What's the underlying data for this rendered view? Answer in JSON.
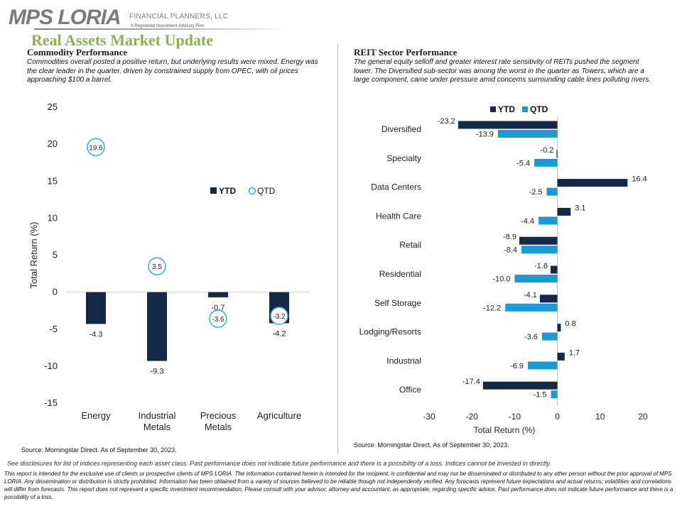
{
  "header": {
    "logo_text": "MPS LORIA",
    "logo_tagline": "FINANCIAL PLANNERS, LLC",
    "logo_subtagline": "A Registered Investment Advisory Firm",
    "title": "Real Assets Market Update"
  },
  "commodity": {
    "title": "Commodity Performance",
    "description": "Commodities overall posted a positive return, but underlying results were mixed. Energy was the clear leader in the quarter, driven by constrained supply from OPEC, with oil prices approaching $100 a barrel.",
    "source": "Source: Morningstar Direct. As of September 30, 2023."
  },
  "reit": {
    "title": "REIT Sector Performance",
    "description": "The general equity selloff and greater interest rate sensitivity of REITs pushed the segment lower. The Diversified sub-sector was among the worst in the quarter as Towers, which are a large component, came under pressure amid concerns surrounding cable lines polluting rivers.",
    "source": "Source: Morningstar Direct. As of September 30, 2023."
  },
  "chart_data": [
    {
      "type": "bar",
      "categories": [
        "Energy",
        "Industrial\nMetals",
        "Precious\nMetals",
        "Agriculture"
      ],
      "series": [
        {
          "name": "YTD",
          "values": [
            -4.3,
            -9.3,
            -0.7,
            -4.2
          ],
          "color": "#14294a",
          "marker": "bar"
        },
        {
          "name": "QTD",
          "values": [
            19.6,
            3.5,
            -3.6,
            -3.2
          ],
          "color": "#3aa9d9",
          "marker": "circle"
        }
      ],
      "ylabel": "Total Return (%)",
      "xlabel": "",
      "ylim": [
        -15,
        25
      ],
      "yticks": [
        -15,
        -10,
        -5,
        0,
        5,
        10,
        15,
        20,
        25
      ],
      "grid": false,
      "legend": "center-right"
    },
    {
      "type": "bar",
      "orientation": "horizontal",
      "categories": [
        "Diversified",
        "Specialty",
        "Data Centers",
        "Health Care",
        "Retail",
        "Residential",
        "Self Storage",
        "Lodging/Resorts",
        "Industrial",
        "Office"
      ],
      "series": [
        {
          "name": "YTD",
          "values": [
            -23.2,
            -0.2,
            16.4,
            3.1,
            -8.9,
            -1.6,
            -4.1,
            0.8,
            1.7,
            -17.4
          ],
          "color": "#14294a"
        },
        {
          "name": "QTD",
          "values": [
            -13.9,
            -5.4,
            -2.5,
            -4.4,
            -8.4,
            -10.0,
            -12.2,
            -3.6,
            -6.9,
            -1.5
          ],
          "color": "#1b9ad6"
        }
      ],
      "xlabel": "Total Return (%)",
      "ylabel": "",
      "xlim": [
        -30,
        20
      ],
      "xticks": [
        -30,
        -20,
        -10,
        0,
        10,
        20
      ],
      "grid": false,
      "legend": "top-center"
    }
  ],
  "footer": {
    "disclosure": "See disclosures for list of indices representing each asset class. Past performance does not indicate future performance and there is a possibility of a loss. Indices cannot be invested in directly.",
    "legal": "This report is intended for the exclusive use of clients or prospective clients of MPS LORIA. The information contained herein is intended for the recipient, is confidential and may not be disseminated or distributed to any other person without the prior approval of MPS LORIA. Any dissemination or distribution is strictly prohibited. Information has been obtained from a variety of sources believed to be reliable though not independently verified. Any forecasts represent future expectations and actual returns; volatilities and correlations will differ from forecasts. This report does not represent a specific investment recommendation. Please consult with your advisor, attorney and accountant, as appropriate, regarding specific advice. Past performance does not indicate future performance and there is a possibility of a loss."
  }
}
